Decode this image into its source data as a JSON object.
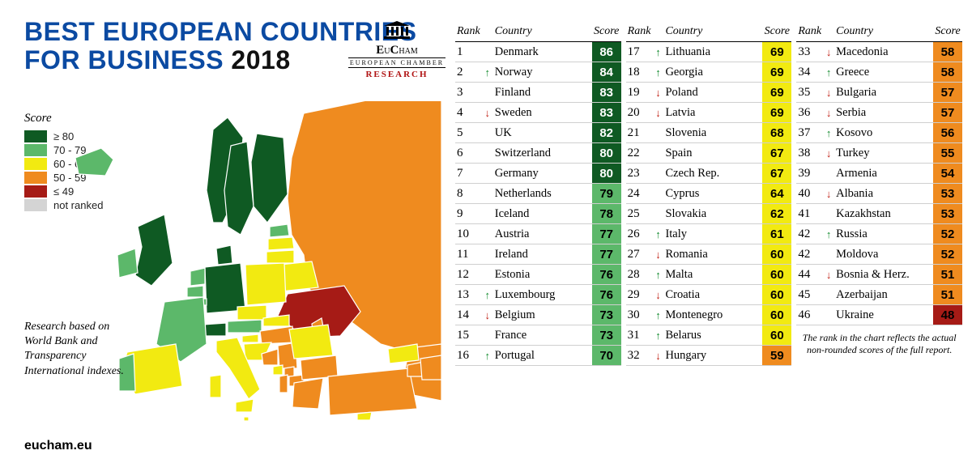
{
  "title": {
    "line1": "BEST EUROPEAN COUNTRIES",
    "line2_pre": "FOR BUSINESS ",
    "year": "2018"
  },
  "logo": {
    "name_pre": "E",
    "name_small1": "U",
    "name_mid": "C",
    "name_small2": "HAM",
    "subtitle": "EUROPEAN CHAMBER",
    "research": "RESEARCH"
  },
  "legend": {
    "title": "Score",
    "items": [
      {
        "label": "≥ 80",
        "color": "#0f5a23"
      },
      {
        "label": "70 - 79",
        "color": "#5cb86a"
      },
      {
        "label": "60 - 69",
        "color": "#f2ea11"
      },
      {
        "label": "50 - 59",
        "color": "#ef8b1f"
      },
      {
        "label": "≤ 49",
        "color": "#a61b16"
      },
      {
        "label": "not ranked",
        "color": "#d4d4d4"
      }
    ]
  },
  "caption": "Research based on World Bank and Transparency International indexes.",
  "site": "eucham.eu",
  "table": {
    "headers": {
      "rank": "Rank",
      "country": "Country",
      "score": "Score"
    },
    "footnote": "The rank in the chart reflects the actual non-rounded scores of the full report.",
    "score_colors": {
      "80": "#0f5a23",
      "70": "#5cb86a",
      "60": "#f2ea11",
      "50": "#ef8b1f",
      "0": "#a61b16"
    },
    "score_text_colors": {
      "dark": "#000000",
      "light": "#ffffff"
    },
    "rows": [
      {
        "rank": 1,
        "country": "Denmark",
        "score": 86,
        "trend": ""
      },
      {
        "rank": 2,
        "country": "Norway",
        "score": 84,
        "trend": "up"
      },
      {
        "rank": 3,
        "country": "Finland",
        "score": 83,
        "trend": ""
      },
      {
        "rank": 4,
        "country": "Sweden",
        "score": 83,
        "trend": "down"
      },
      {
        "rank": 5,
        "country": "UK",
        "score": 82,
        "trend": ""
      },
      {
        "rank": 6,
        "country": "Switzerland",
        "score": 80,
        "trend": ""
      },
      {
        "rank": 7,
        "country": "Germany",
        "score": 80,
        "trend": ""
      },
      {
        "rank": 8,
        "country": "Netherlands",
        "score": 79,
        "trend": ""
      },
      {
        "rank": 9,
        "country": "Iceland",
        "score": 78,
        "trend": ""
      },
      {
        "rank": 10,
        "country": "Austria",
        "score": 77,
        "trend": ""
      },
      {
        "rank": 11,
        "country": "Ireland",
        "score": 77,
        "trend": ""
      },
      {
        "rank": 12,
        "country": "Estonia",
        "score": 76,
        "trend": ""
      },
      {
        "rank": 13,
        "country": "Luxembourg",
        "score": 76,
        "trend": "up"
      },
      {
        "rank": 14,
        "country": "Belgium",
        "score": 73,
        "trend": "down"
      },
      {
        "rank": 15,
        "country": "France",
        "score": 73,
        "trend": ""
      },
      {
        "rank": 16,
        "country": "Portugal",
        "score": 70,
        "trend": "up"
      },
      {
        "rank": 17,
        "country": "Lithuania",
        "score": 69,
        "trend": "up"
      },
      {
        "rank": 18,
        "country": "Georgia",
        "score": 69,
        "trend": "up"
      },
      {
        "rank": 19,
        "country": "Poland",
        "score": 69,
        "trend": "down"
      },
      {
        "rank": 20,
        "country": "Latvia",
        "score": 69,
        "trend": "down"
      },
      {
        "rank": 21,
        "country": "Slovenia",
        "score": 68,
        "trend": ""
      },
      {
        "rank": 22,
        "country": "Spain",
        "score": 67,
        "trend": ""
      },
      {
        "rank": 23,
        "country": "Czech Rep.",
        "score": 67,
        "trend": ""
      },
      {
        "rank": 24,
        "country": "Cyprus",
        "score": 64,
        "trend": ""
      },
      {
        "rank": 25,
        "country": "Slovakia",
        "score": 62,
        "trend": ""
      },
      {
        "rank": 26,
        "country": "Italy",
        "score": 61,
        "trend": "up"
      },
      {
        "rank": 27,
        "country": "Romania",
        "score": 60,
        "trend": "down"
      },
      {
        "rank": 28,
        "country": "Malta",
        "score": 60,
        "trend": "up"
      },
      {
        "rank": 29,
        "country": "Croatia",
        "score": 60,
        "trend": "down"
      },
      {
        "rank": 30,
        "country": "Montenegro",
        "score": 60,
        "trend": "up"
      },
      {
        "rank": 31,
        "country": "Belarus",
        "score": 60,
        "trend": "up"
      },
      {
        "rank": 32,
        "country": "Hungary",
        "score": 59,
        "trend": "down"
      },
      {
        "rank": 33,
        "country": "Macedonia",
        "score": 58,
        "trend": "down"
      },
      {
        "rank": 34,
        "country": "Greece",
        "score": 58,
        "trend": "up"
      },
      {
        "rank": 35,
        "country": "Bulgaria",
        "score": 57,
        "trend": "down"
      },
      {
        "rank": 36,
        "country": "Serbia",
        "score": 57,
        "trend": "down"
      },
      {
        "rank": 37,
        "country": "Kosovo",
        "score": 56,
        "trend": "up"
      },
      {
        "rank": 38,
        "country": "Turkey",
        "score": 55,
        "trend": "down"
      },
      {
        "rank": 39,
        "country": "Armenia",
        "score": 54,
        "trend": ""
      },
      {
        "rank": 40,
        "country": "Albania",
        "score": 53,
        "trend": "down"
      },
      {
        "rank": 41,
        "country": "Kazakhstan",
        "score": 53,
        "trend": ""
      },
      {
        "rank": 42,
        "country": "Russia",
        "score": 52,
        "trend": "up"
      },
      {
        "rank": 42,
        "country": "Moldova",
        "score": 52,
        "trend": ""
      },
      {
        "rank": 44,
        "country": "Bosnia & Herz.",
        "score": 51,
        "trend": "down"
      },
      {
        "rank": 45,
        "country": "Azerbaijan",
        "score": 51,
        "trend": ""
      },
      {
        "rank": 46,
        "country": "Ukraine",
        "score": 48,
        "trend": ""
      }
    ]
  },
  "map": {
    "stroke": "#ffffff",
    "stroke_width": 1.2,
    "sea_color": "#ffffff"
  }
}
